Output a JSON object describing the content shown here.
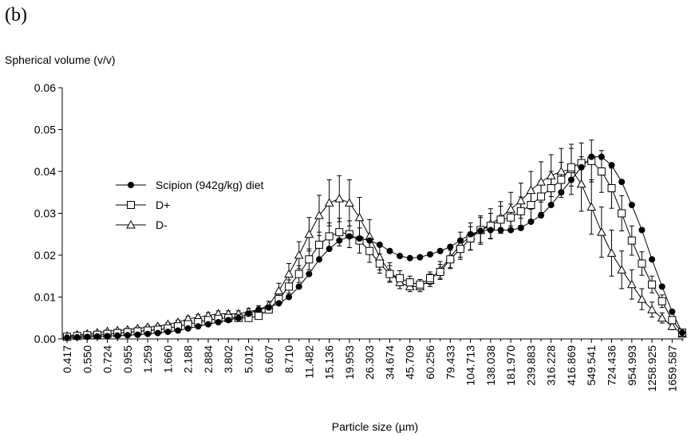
{
  "chart_data": {
    "type": "line",
    "panel_label": "(b)",
    "y_axis_label": "Spherical volume (v/v)",
    "x_axis_label": "Particle size (µm)",
    "categories": [
      "0.417",
      null,
      "0.550",
      null,
      "0.724",
      null,
      "0.955",
      null,
      "1.259",
      null,
      "1.660",
      null,
      "2.188",
      null,
      "2.884",
      null,
      "3.802",
      null,
      "5.012",
      null,
      "6.607",
      null,
      "8.710",
      null,
      "11.482",
      null,
      "15.136",
      null,
      "19.953",
      null,
      "26.303",
      null,
      "34.674",
      null,
      "45.709",
      null,
      "60.256",
      null,
      "79.433",
      null,
      "104.713",
      null,
      "138.038",
      null,
      "181.970",
      null,
      "239.883",
      null,
      "316.228",
      null,
      "416.869",
      null,
      "549.541",
      null,
      "724.436",
      null,
      "954.993",
      null,
      "1258.925",
      null,
      "1659.587",
      null
    ],
    "ylim": [
      0,
      0.06
    ],
    "yticks": [
      {
        "value": 0,
        "label": "0.00"
      },
      0.01,
      0.02,
      0.03,
      0.04,
      0.05,
      0.06
    ],
    "legend": "left",
    "series": [
      {
        "name": "Scipion (942g/kg) diet",
        "color": "#000000",
        "marker": "circle",
        "values": [
          0.0003,
          0.0004,
          0.0005,
          0.0006,
          0.0007,
          0.0008,
          0.0009,
          0.001,
          0.0012,
          0.0014,
          0.0017,
          0.002,
          0.0025,
          0.003,
          0.0035,
          0.004,
          0.0045,
          0.005,
          0.006,
          0.007,
          0.0075,
          0.0085,
          0.01,
          0.0125,
          0.0155,
          0.019,
          0.0215,
          0.0235,
          0.0245,
          0.024,
          0.0235,
          0.0225,
          0.021,
          0.0198,
          0.0193,
          0.0195,
          0.0202,
          0.021,
          0.022,
          0.0235,
          0.025,
          0.0258,
          0.026,
          0.026,
          0.026,
          0.0265,
          0.028,
          0.0295,
          0.032,
          0.035,
          0.038,
          0.041,
          0.0435,
          0.0435,
          0.0415,
          0.0375,
          0.032,
          0.026,
          0.019,
          0.0125,
          0.0065,
          0.0015
        ]
      },
      {
        "name": "D+",
        "color": "#000000",
        "marker": "square",
        "values": [
          0.0005,
          0.0007,
          0.0009,
          0.001,
          0.0012,
          0.0014,
          0.0016,
          0.0018,
          0.002,
          0.0022,
          0.0025,
          0.003,
          0.0035,
          0.004,
          0.0045,
          0.0048,
          0.005,
          0.005,
          0.005,
          0.0055,
          0.007,
          0.0095,
          0.0125,
          0.0155,
          0.019,
          0.0225,
          0.0245,
          0.0255,
          0.025,
          0.0235,
          0.021,
          0.018,
          0.0155,
          0.0145,
          0.0135,
          0.013,
          0.0145,
          0.016,
          0.019,
          0.0215,
          0.024,
          0.026,
          0.027,
          0.0285,
          0.029,
          0.0305,
          0.032,
          0.034,
          0.036,
          0.038,
          0.041,
          0.042,
          0.0425,
          0.04,
          0.036,
          0.03,
          0.0235,
          0.018,
          0.013,
          0.009,
          0.0045,
          0.0015
        ],
        "errors": [
          0.0002,
          0.0002,
          0.0002,
          0.0002,
          0.0002,
          0.0003,
          0.0003,
          0.0003,
          0.0003,
          0.0003,
          0.0003,
          0.0004,
          0.0004,
          0.0005,
          0.0005,
          0.0005,
          0.0006,
          0.0006,
          0.0006,
          0.0006,
          0.0008,
          0.0012,
          0.0016,
          0.002,
          0.0025,
          0.003,
          0.0032,
          0.0033,
          0.0032,
          0.003,
          0.0027,
          0.0023,
          0.002,
          0.0018,
          0.0015,
          0.0012,
          0.0015,
          0.0018,
          0.0022,
          0.0025,
          0.0028,
          0.003,
          0.003,
          0.0032,
          0.0032,
          0.0034,
          0.0036,
          0.0038,
          0.004,
          0.0042,
          0.0045,
          0.0048,
          0.005,
          0.005,
          0.0048,
          0.0042,
          0.0035,
          0.0028,
          0.002,
          0.0015,
          0.0008,
          0.0003
        ]
      },
      {
        "name": "D-",
        "color": "#000000",
        "marker": "triangle",
        "values": [
          0.0007,
          0.001,
          0.0012,
          0.0015,
          0.0018,
          0.002,
          0.0022,
          0.0025,
          0.0028,
          0.003,
          0.0035,
          0.004,
          0.0048,
          0.0052,
          0.0056,
          0.006,
          0.006,
          0.006,
          0.0065,
          0.007,
          0.008,
          0.0115,
          0.0155,
          0.02,
          0.025,
          0.0295,
          0.0325,
          0.0335,
          0.0325,
          0.029,
          0.0245,
          0.0195,
          0.016,
          0.0135,
          0.0125,
          0.0125,
          0.014,
          0.0165,
          0.0195,
          0.0225,
          0.0245,
          0.026,
          0.0275,
          0.029,
          0.031,
          0.033,
          0.0355,
          0.0375,
          0.039,
          0.04,
          0.0405,
          0.037,
          0.0315,
          0.0255,
          0.0205,
          0.0165,
          0.013,
          0.0095,
          0.007,
          0.005,
          0.003,
          0.0012
        ],
        "errors": [
          0.0002,
          0.0002,
          0.0002,
          0.0003,
          0.0003,
          0.0003,
          0.0003,
          0.0003,
          0.0004,
          0.0004,
          0.0004,
          0.0005,
          0.0006,
          0.0006,
          0.0007,
          0.0007,
          0.0007,
          0.0007,
          0.0008,
          0.0009,
          0.001,
          0.0018,
          0.0025,
          0.0032,
          0.004,
          0.0048,
          0.0055,
          0.0055,
          0.0055,
          0.0048,
          0.004,
          0.003,
          0.0022,
          0.0015,
          0.0012,
          0.0012,
          0.0015,
          0.002,
          0.0025,
          0.003,
          0.0032,
          0.0034,
          0.0036,
          0.0038,
          0.004,
          0.0042,
          0.0045,
          0.0048,
          0.005,
          0.0055,
          0.006,
          0.0065,
          0.0065,
          0.006,
          0.0055,
          0.0045,
          0.0035,
          0.0025,
          0.0018,
          0.0012,
          0.0008,
          0.0003
        ]
      }
    ]
  }
}
